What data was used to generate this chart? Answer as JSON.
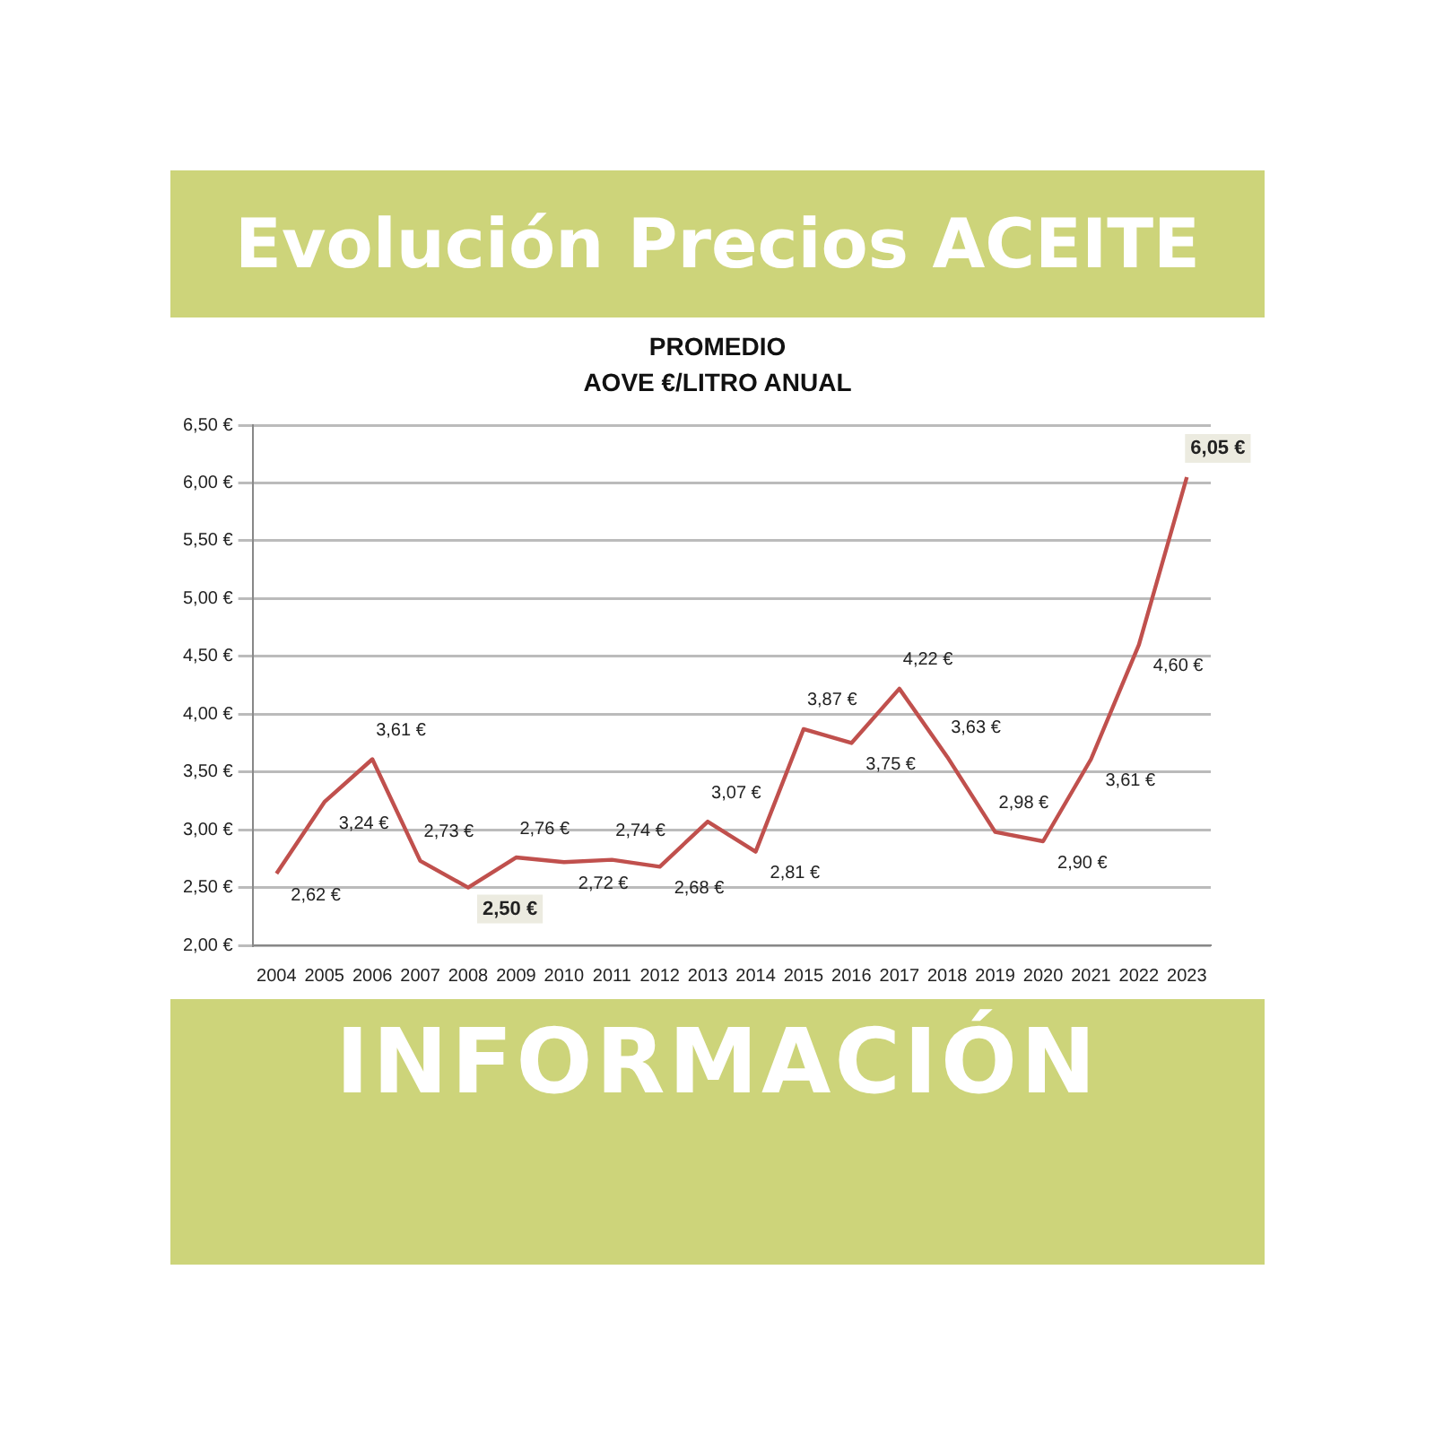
{
  "chart_data": {
    "type": "line",
    "title": "Evolución Precios ACEITE",
    "subtitle": "PROMEDIO\nAOVE €/LITRO ANUAL",
    "annotations": [
      "INFORMACIÓN"
    ],
    "categories": [
      "2004",
      "2005",
      "2006",
      "2007",
      "2008",
      "2009",
      "2010",
      "2011",
      "2012",
      "2013",
      "2014",
      "2015",
      "2016",
      "2017",
      "2018",
      "2019",
      "2020",
      "2021",
      "2022",
      "2023"
    ],
    "series": [
      {
        "color": "#c0504d",
        "values": [
          2.62,
          3.24,
          3.61,
          2.73,
          2.5,
          2.76,
          2.72,
          2.74,
          2.68,
          3.07,
          2.81,
          3.87,
          3.75,
          4.22,
          3.63,
          2.98,
          2.9,
          3.61,
          4.6,
          6.05
        ],
        "value_labels": [
          "2,62 €",
          "3,24 €",
          "3,61 €",
          "2,73 €",
          "2,50 €",
          "2,76 €",
          "2,72 €",
          "2,74 €",
          "2,68 €",
          "3,07 €",
          "2,81 €",
          "3,87 €",
          "3,75 €",
          "4,22 €",
          "3,63 €",
          "2,98 €",
          "2,90 €",
          "3,61 €",
          "4,60 €",
          "6,05 €"
        ]
      }
    ],
    "ylim": [
      2,
      6.5
    ],
    "yticks": [
      {
        "value": 2,
        "label": "2,00 €"
      },
      {
        "value": 2.5,
        "label": "2,50 €"
      },
      {
        "value": 3,
        "label": "3,00 €"
      },
      {
        "value": 3.5,
        "label": "3,50 €"
      },
      {
        "value": 4,
        "label": "4,00 €"
      },
      {
        "value": 4.5,
        "label": "4,50 €"
      },
      {
        "value": 5,
        "label": "5,00 €"
      },
      {
        "value": 5.5,
        "label": "5,50 €"
      },
      {
        "value": 6,
        "label": "6,00 €"
      },
      {
        "value": 6.5,
        "label": "6,50 €"
      }
    ],
    "grid": "y",
    "legend": false,
    "marker": "none",
    "line_style": "solid"
  }
}
